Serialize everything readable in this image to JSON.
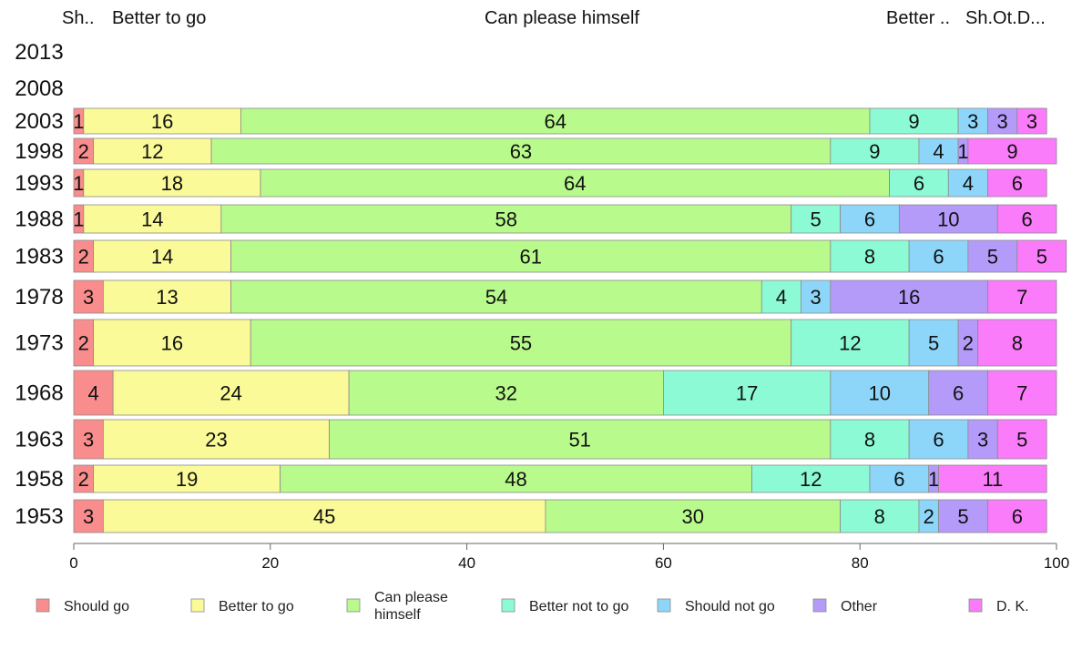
{
  "chart_data": {
    "type": "bar",
    "orientation": "horizontal",
    "stacked": true,
    "categories": [
      "2013",
      "2008",
      "2003",
      "1998",
      "1993",
      "1988",
      "1983",
      "1978",
      "1973",
      "1968",
      "1963",
      "1958",
      "1953"
    ],
    "series": [
      {
        "name": "Should go",
        "color": "#f98d8d",
        "values": [
          null,
          null,
          1,
          2,
          1,
          1,
          2,
          3,
          2,
          4,
          3,
          2,
          3
        ]
      },
      {
        "name": "Better to go",
        "color": "#fafa98",
        "values": [
          null,
          null,
          16,
          12,
          18,
          14,
          14,
          13,
          16,
          24,
          23,
          19,
          45
        ]
      },
      {
        "name": "Can please himself",
        "color": "#b9fa8d",
        "values": [
          null,
          null,
          64,
          63,
          64,
          58,
          61,
          54,
          55,
          32,
          51,
          48,
          30
        ]
      },
      {
        "name": "Better not to go",
        "color": "#8dfad6",
        "values": [
          null,
          null,
          9,
          9,
          6,
          5,
          8,
          4,
          12,
          17,
          8,
          12,
          8
        ]
      },
      {
        "name": "Should not go",
        "color": "#8dd6fa",
        "values": [
          null,
          null,
          3,
          4,
          4,
          6,
          6,
          3,
          5,
          10,
          6,
          6,
          2
        ]
      },
      {
        "name": "Other",
        "color": "#b49bfa",
        "values": [
          null,
          null,
          3,
          1,
          null,
          10,
          5,
          16,
          2,
          6,
          3,
          1,
          5
        ]
      },
      {
        "name": "D. K.",
        "color": "#fa7cfa",
        "values": [
          null,
          null,
          3,
          9,
          6,
          6,
          5,
          7,
          8,
          7,
          5,
          11,
          6
        ]
      }
    ],
    "row_weights": [
      null,
      null,
      64,
      63,
      75,
      75,
      88,
      100,
      133,
      147,
      108,
      75,
      172
    ],
    "top_labels": {
      "left1": "Sh..",
      "left2": "Better to go",
      "center": "Can please himself",
      "right1": "Better ..",
      "right2": "Sh.Ot.D..."
    },
    "legend_labels": [
      "Should go",
      "Better to go",
      "Can please\nhimself",
      "Better not to go",
      "Should not go",
      "Other",
      "D. K."
    ],
    "xlim": [
      0,
      100
    ],
    "xticks": [
      0,
      20,
      40,
      60,
      80,
      100
    ],
    "legend_position": "bottom",
    "grid": false
  }
}
